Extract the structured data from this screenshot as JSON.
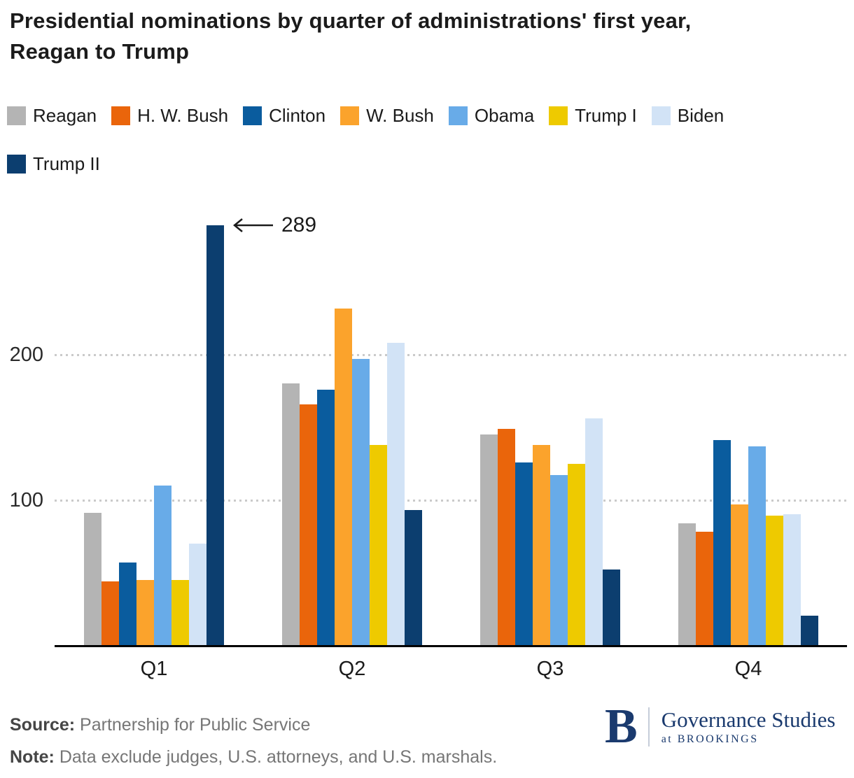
{
  "title": {
    "line1": "Presidential nominations by quarter of administrations' first year,",
    "line2": "Reagan to Trump"
  },
  "chart_data": {
    "type": "bar",
    "categories": [
      "Q1",
      "Q2",
      "Q3",
      "Q4"
    ],
    "series": [
      {
        "name": "Reagan",
        "color": "#b4b4b4",
        "values": [
          91,
          180,
          145,
          84
        ]
      },
      {
        "name": "H. W. Bush",
        "color": "#ea650b",
        "values": [
          44,
          166,
          149,
          78
        ]
      },
      {
        "name": "Clinton",
        "color": "#0a5c9e",
        "values": [
          57,
          176,
          126,
          141
        ]
      },
      {
        "name": "W. Bush",
        "color": "#fba32c",
        "values": [
          45,
          232,
          138,
          97
        ]
      },
      {
        "name": "Obama",
        "color": "#68abe8",
        "values": [
          110,
          197,
          117,
          137
        ]
      },
      {
        "name": "Trump I",
        "color": "#eeca00",
        "values": [
          45,
          138,
          125,
          89
        ]
      },
      {
        "name": "Biden",
        "color": "#d2e3f6",
        "values": [
          70,
          208,
          156,
          90
        ]
      },
      {
        "name": "Trump II",
        "color": "#0c3e6f",
        "values": [
          289,
          93,
          52,
          20
        ]
      }
    ],
    "yticks": [
      100,
      200
    ],
    "ylim": [
      0,
      300
    ],
    "grid": "dotted-horizontal",
    "legend_position": "top",
    "annotation": {
      "label": "289",
      "series": "Trump II",
      "category": "Q1"
    }
  },
  "footer": {
    "source_label": "Source:",
    "source_text": "Partnership for Public Service",
    "note_label": "Note:",
    "note_text": "Data exclude judges, U.S. attorneys, and U.S. marshals."
  },
  "logo": {
    "b": "B",
    "title": "Governance Studies",
    "subtitle": "at BROOKINGS"
  }
}
